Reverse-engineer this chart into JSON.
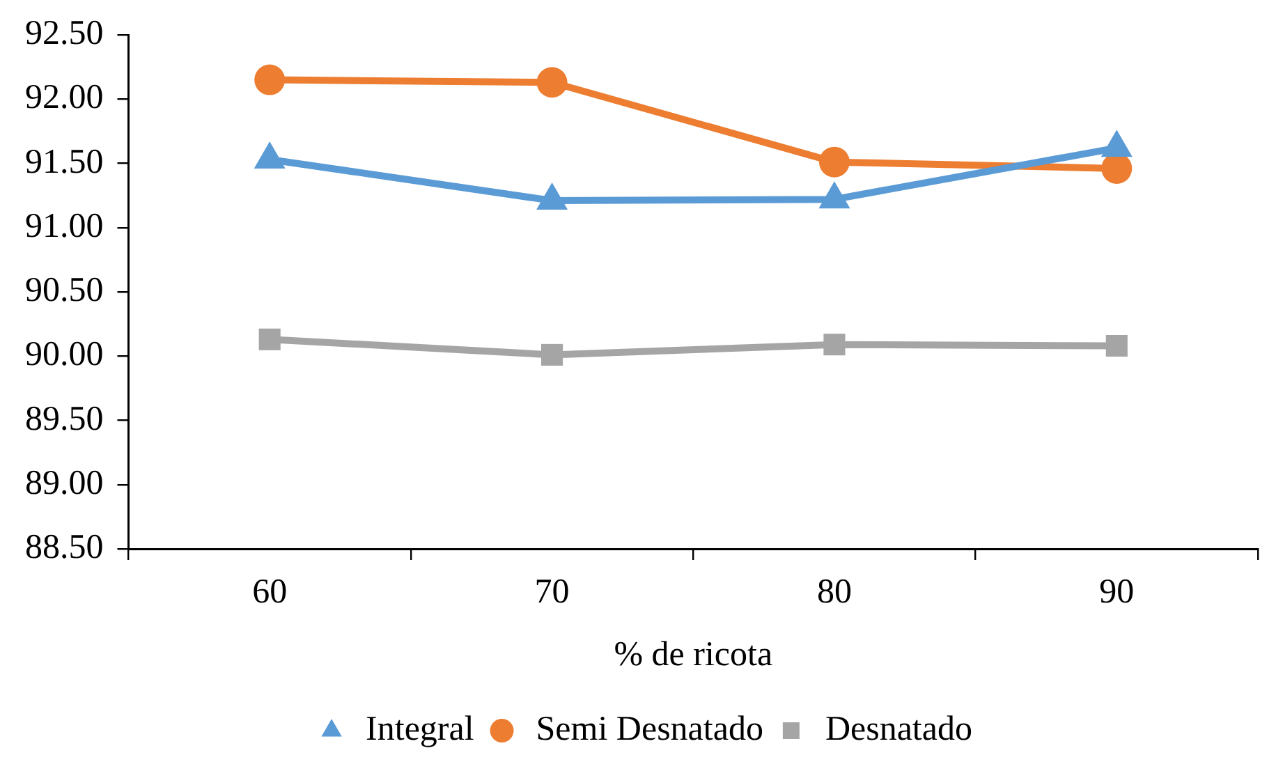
{
  "chart_data": {
    "type": "line",
    "xlabel": "% de ricota",
    "categories": [
      "60",
      "70",
      "80",
      "90"
    ],
    "series": [
      {
        "name": "Integral",
        "color": "#5b9bd5",
        "marker": "triangle",
        "values": [
          91.53,
          91.21,
          91.22,
          91.62
        ]
      },
      {
        "name": "Semi Desnatado",
        "color": "#ed7d31",
        "marker": "circle",
        "values": [
          92.15,
          92.13,
          91.51,
          91.46
        ]
      },
      {
        "name": "Desnatado",
        "color": "#a5a5a5",
        "marker": "square",
        "values": [
          90.13,
          90.01,
          90.09,
          90.08
        ]
      }
    ],
    "ylim": [
      88.5,
      92.5
    ],
    "yticks": [
      {
        "value": 88.5,
        "label": "88.50"
      },
      {
        "value": 89,
        "label": "89.00"
      },
      {
        "value": 89.5,
        "label": "89.50"
      },
      {
        "value": 90,
        "label": "90.00"
      },
      {
        "value": 90.5,
        "label": "90.50"
      },
      {
        "value": 91,
        "label": "91.00"
      },
      {
        "value": 91.5,
        "label": "91.50"
      },
      {
        "value": 92,
        "label": "92.00"
      },
      {
        "value": 92.5,
        "label": "92.50"
      }
    ],
    "grid": false,
    "legend": "bottom",
    "line_style": "solid"
  }
}
